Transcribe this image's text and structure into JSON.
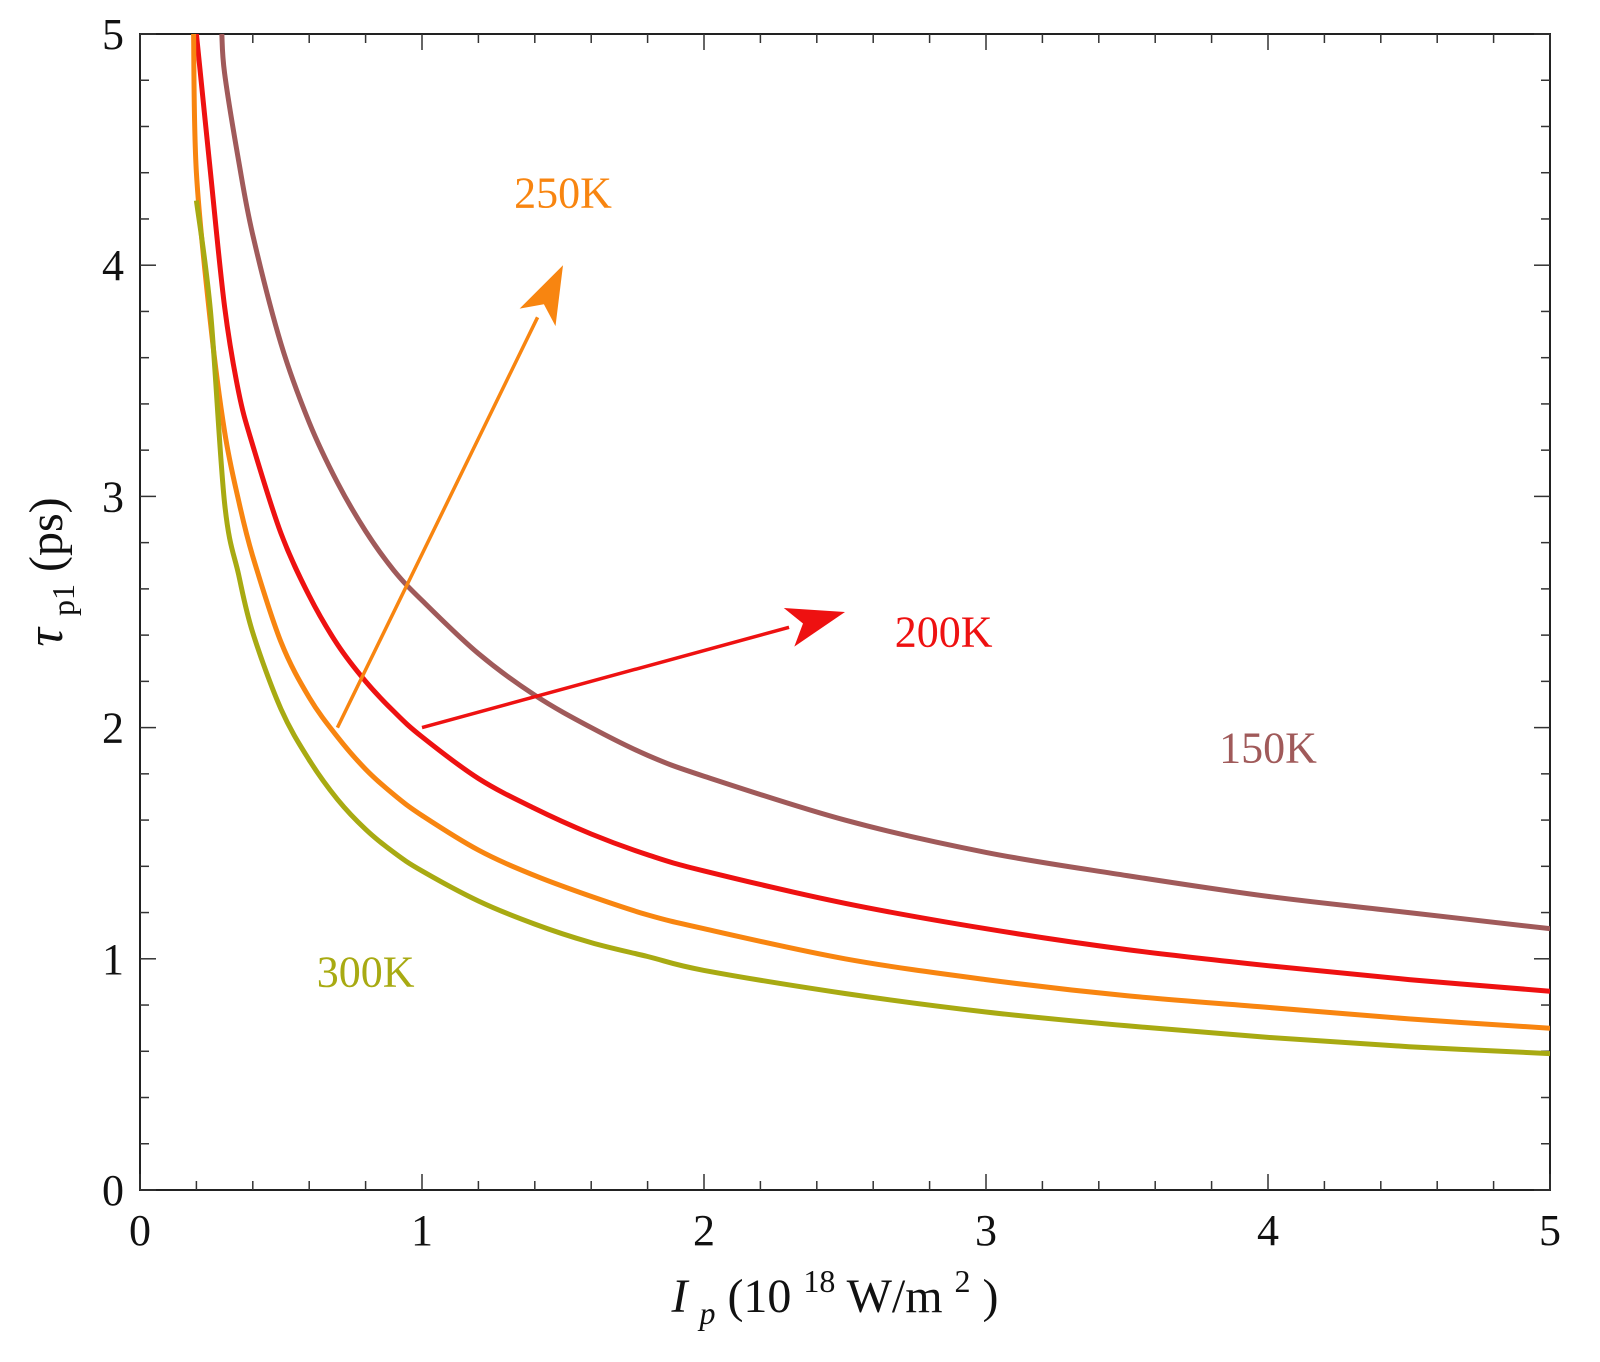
{
  "chart_data": {
    "type": "line",
    "title": "",
    "xlabel": {
      "symbol": "I",
      "subscript": "p",
      "open": " (10",
      "exponent": "18",
      "unit": "W/m",
      "unit_exponent": "2",
      "close": ")"
    },
    "ylabel": {
      "symbol": "τ",
      "subscript": "p1",
      "unit": "(ps)"
    },
    "xlim": [
      0,
      5
    ],
    "ylim": [
      0,
      5
    ],
    "xticks": [
      0,
      1,
      2,
      3,
      4,
      5
    ],
    "yticks": [
      0,
      1,
      2,
      3,
      4,
      5
    ],
    "xtick_labels": [
      "0",
      "1",
      "2",
      "3",
      "4",
      "5"
    ],
    "ytick_labels": [
      "0",
      "1",
      "2",
      "3",
      "4",
      "5"
    ],
    "minor_ticks_per_major": 5,
    "grid": false,
    "series": [
      {
        "name": "150K",
        "color": "#a05a5a",
        "x": [
          0.29,
          0.3,
          0.35,
          0.4,
          0.5,
          0.6,
          0.7,
          0.8,
          0.9,
          1.0,
          1.2,
          1.4,
          1.6,
          1.8,
          2.0,
          2.5,
          3.0,
          3.5,
          4.0,
          4.5,
          5.0
        ],
        "y": [
          5.0,
          4.83,
          4.45,
          4.13,
          3.66,
          3.32,
          3.06,
          2.85,
          2.68,
          2.55,
          2.32,
          2.14,
          2.0,
          1.88,
          1.79,
          1.6,
          1.46,
          1.36,
          1.27,
          1.2,
          1.13
        ]
      },
      {
        "name": "200K",
        "color": "#ee1111",
        "x": [
          0.2,
          0.25,
          0.3,
          0.35,
          0.4,
          0.5,
          0.6,
          0.7,
          0.8,
          0.9,
          1.0,
          1.2,
          1.4,
          1.6,
          1.8,
          2.0,
          2.5,
          3.0,
          3.5,
          4.0,
          4.5,
          5.0
        ],
        "y": [
          5.0,
          4.4,
          3.82,
          3.45,
          3.22,
          2.84,
          2.57,
          2.36,
          2.2,
          2.07,
          1.96,
          1.78,
          1.65,
          1.54,
          1.45,
          1.38,
          1.24,
          1.13,
          1.04,
          0.97,
          0.91,
          0.86
        ]
      },
      {
        "name": "250K",
        "color": "#f88510",
        "x": [
          0.19,
          0.2,
          0.25,
          0.3,
          0.35,
          0.4,
          0.5,
          0.6,
          0.7,
          0.8,
          0.9,
          1.0,
          1.2,
          1.4,
          1.6,
          1.8,
          2.0,
          2.5,
          3.0,
          3.5,
          4.0,
          4.5,
          5.0
        ],
        "y": [
          5.0,
          4.4,
          3.75,
          3.28,
          2.98,
          2.74,
          2.37,
          2.13,
          1.96,
          1.82,
          1.71,
          1.62,
          1.47,
          1.36,
          1.27,
          1.19,
          1.13,
          1.0,
          0.91,
          0.84,
          0.79,
          0.74,
          0.7
        ]
      },
      {
        "name": "300K",
        "color": "#a8aa12",
        "x": [
          0.2,
          0.25,
          0.3,
          0.35,
          0.4,
          0.5,
          0.6,
          0.7,
          0.8,
          0.9,
          1.0,
          1.2,
          1.4,
          1.6,
          1.8,
          2.0,
          2.5,
          3.0,
          3.5,
          4.0,
          4.5,
          5.0
        ],
        "y": [
          4.28,
          3.8,
          2.97,
          2.66,
          2.41,
          2.08,
          1.86,
          1.69,
          1.56,
          1.46,
          1.38,
          1.25,
          1.15,
          1.07,
          1.01,
          0.95,
          0.85,
          0.77,
          0.71,
          0.66,
          0.62,
          0.59
        ]
      }
    ],
    "annotations": [
      {
        "text": "250K",
        "color": "#f88510",
        "x": 1.5,
        "y": 4.25,
        "anchor": "middle"
      },
      {
        "text": "200K",
        "color": "#ee1111",
        "x": 2.85,
        "y": 2.35,
        "anchor": "middle"
      },
      {
        "text": "150K",
        "color": "#a05a5a",
        "x": 4.0,
        "y": 1.85,
        "anchor": "middle"
      },
      {
        "text": "300K",
        "color": "#a8aa12",
        "x": 0.8,
        "y": 0.88,
        "anchor": "middle"
      }
    ],
    "arrows": [
      {
        "color": "#f88510",
        "from": [
          0.7,
          2.0
        ],
        "to": [
          1.5,
          4.0
        ]
      },
      {
        "color": "#ee1111",
        "from": [
          1.0,
          2.0
        ],
        "to": [
          2.5,
          2.5
        ]
      }
    ]
  }
}
